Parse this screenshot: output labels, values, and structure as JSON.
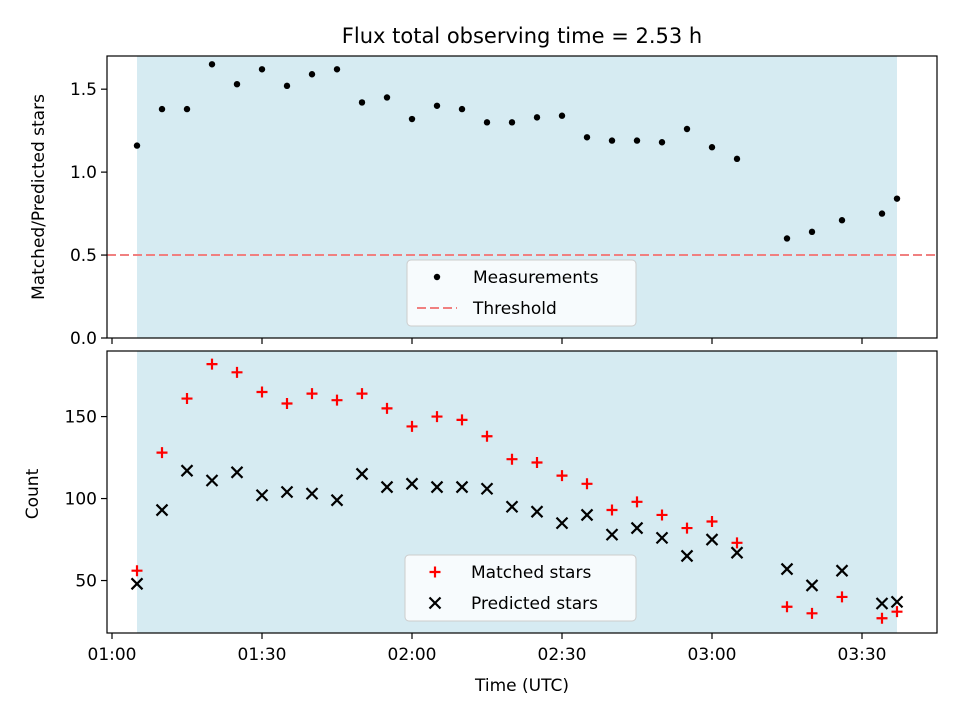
{
  "figure": {
    "title": "Flux total observing time = 2.53 h",
    "xlabel": "Time (UTC)"
  },
  "chart_data": [
    {
      "type": "scatter",
      "panel": "top",
      "ylabel": "Matched/Predicted stars",
      "xlim": [
        "00:59",
        "03:45"
      ],
      "ylim": [
        0,
        1.7
      ],
      "yticks": [
        "0.0",
        "0.5",
        "1.0",
        "1.5"
      ],
      "shaded_span": [
        "01:05",
        "03:37"
      ],
      "shade_color": "#add8e6",
      "legend_placement": "lower center",
      "series": [
        {
          "name": "Measurements",
          "marker": "dot",
          "color": "#000000",
          "x": [
            "01:05",
            "01:10",
            "01:15",
            "01:20",
            "01:25",
            "01:30",
            "01:35",
            "01:40",
            "01:45",
            "01:50",
            "01:55",
            "02:00",
            "02:05",
            "02:10",
            "02:15",
            "02:20",
            "02:25",
            "02:30",
            "02:35",
            "02:40",
            "02:45",
            "02:50",
            "02:55",
            "03:00",
            "03:05",
            "03:15",
            "03:20",
            "03:26",
            "03:34",
            "03:37"
          ],
          "y": [
            1.16,
            1.38,
            1.38,
            1.65,
            1.53,
            1.62,
            1.52,
            1.59,
            1.62,
            1.42,
            1.45,
            1.32,
            1.4,
            1.38,
            1.3,
            1.3,
            1.33,
            1.34,
            1.21,
            1.19,
            1.19,
            1.18,
            1.26,
            1.15,
            1.08,
            0.6,
            0.64,
            0.71,
            0.75,
            0.84
          ]
        },
        {
          "name": "Threshold",
          "style": "dashed",
          "color": "#f08080",
          "y": 0.5
        }
      ]
    },
    {
      "type": "scatter",
      "panel": "bottom",
      "ylabel": "Count",
      "xlim": [
        "00:59",
        "03:45"
      ],
      "ylim": [
        18,
        190
      ],
      "yticks": [
        "50",
        "100",
        "150"
      ],
      "xticks": [
        "01:00",
        "01:30",
        "02:00",
        "02:30",
        "03:00",
        "03:30"
      ],
      "shaded_span": [
        "01:05",
        "03:37"
      ],
      "shade_color": "#add8e6",
      "legend_placement": "lower center",
      "x": [
        "01:05",
        "01:10",
        "01:15",
        "01:20",
        "01:25",
        "01:30",
        "01:35",
        "01:40",
        "01:45",
        "01:50",
        "01:55",
        "02:00",
        "02:05",
        "02:10",
        "02:15",
        "02:20",
        "02:25",
        "02:30",
        "02:35",
        "02:40",
        "02:45",
        "02:50",
        "02:55",
        "03:00",
        "03:05",
        "03:15",
        "03:20",
        "03:26",
        "03:34",
        "03:37"
      ],
      "series": [
        {
          "name": "Matched stars",
          "marker": "plus",
          "color": "#ff0000",
          "values": [
            56,
            128,
            161,
            182,
            177,
            165,
            158,
            164,
            160,
            164,
            155,
            144,
            150,
            148,
            138,
            124,
            122,
            114,
            109,
            93,
            98,
            90,
            82,
            86,
            73,
            34,
            30,
            40,
            27,
            31
          ]
        },
        {
          "name": "Predicted stars",
          "marker": "x",
          "color": "#000000",
          "values": [
            48,
            93,
            117,
            111,
            116,
            102,
            104,
            103,
            99,
            115,
            107,
            109,
            107,
            107,
            106,
            95,
            92,
            85,
            90,
            78,
            82,
            76,
            65,
            75,
            67,
            57,
            47,
            56,
            36,
            37
          ]
        }
      ]
    }
  ]
}
